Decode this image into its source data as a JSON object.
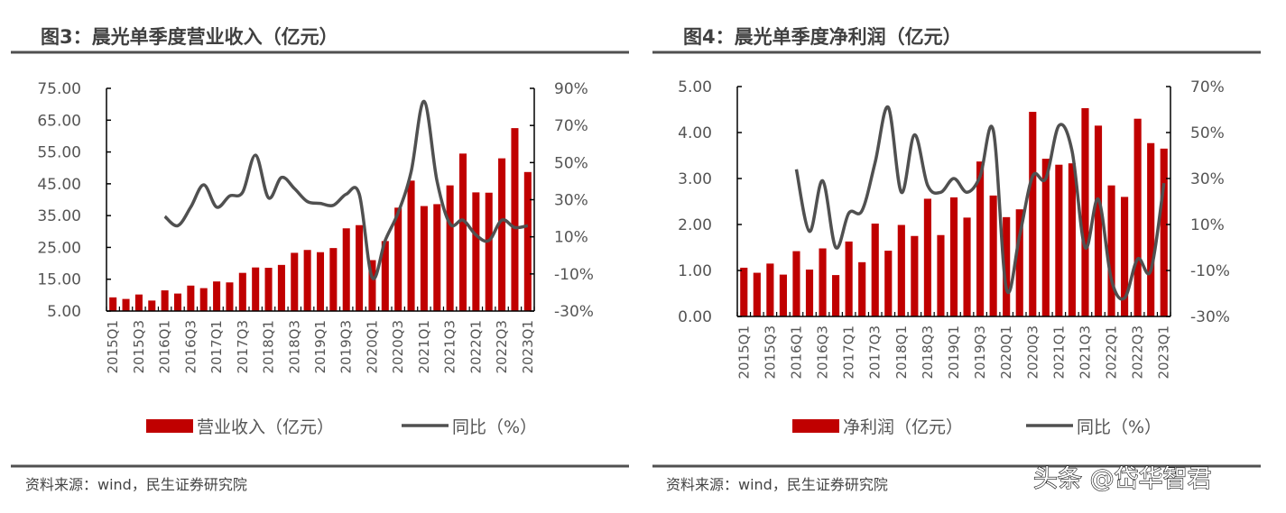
{
  "colors": {
    "bar": "#c00000",
    "line": "#505050",
    "axis": "#000000",
    "rule": "#505050"
  },
  "watermark": "头条 @岱华智君",
  "chart_data": [
    {
      "type": "bar+line",
      "title": "图3：晨光单季度营业收入（亿元）",
      "source": "资料来源：wind，民生证券研究院",
      "categories": [
        "2015Q1",
        "2015Q2",
        "2015Q3",
        "2015Q4",
        "2016Q1",
        "2016Q2",
        "2016Q3",
        "2016Q4",
        "2017Q1",
        "2017Q2",
        "2017Q3",
        "2017Q4",
        "2018Q1",
        "2018Q2",
        "2018Q3",
        "2018Q4",
        "2019Q1",
        "2019Q2",
        "2019Q3",
        "2019Q4",
        "2020Q1",
        "2020Q2",
        "2020Q3",
        "2020Q4",
        "2021Q1",
        "2021Q2",
        "2021Q3",
        "2021Q4",
        "2022Q1",
        "2022Q2",
        "2022Q3",
        "2022Q4",
        "2023Q1"
      ],
      "x_tick_labels": [
        "2015Q1",
        "2015Q3",
        "2016Q1",
        "2016Q3",
        "2017Q1",
        "2017Q3",
        "2018Q1",
        "2018Q3",
        "2019Q1",
        "2019Q3",
        "2020Q1",
        "2020Q3",
        "2021Q1",
        "2021Q3",
        "2022Q1",
        "2022Q3",
        "2023Q1"
      ],
      "left_axis": {
        "ylim": [
          5,
          75
        ],
        "ticks": [
          "5.00",
          "15.00",
          "25.00",
          "35.00",
          "45.00",
          "55.00",
          "65.00",
          "75.00"
        ]
      },
      "right_axis": {
        "ylim": [
          -30,
          90
        ],
        "ticks": [
          "-30%",
          "-10%",
          "10%",
          "30%",
          "50%",
          "70%",
          "90%"
        ]
      },
      "series": [
        {
          "name": "营业收入（亿元）",
          "type": "bar",
          "axis": "left",
          "values": [
            9.3,
            8.8,
            10.2,
            8.3,
            11.5,
            10.5,
            13.0,
            12.2,
            14.3,
            14.0,
            17.0,
            18.7,
            18.6,
            19.5,
            23.3,
            24.2,
            23.5,
            24.8,
            31.0,
            32.0,
            21.0,
            27.0,
            37.5,
            46.0,
            38.0,
            38.6,
            44.5,
            54.5,
            42.3,
            42.2,
            53.0,
            62.5,
            48.7
          ]
        },
        {
          "name": "同比（%）",
          "type": "line",
          "axis": "right",
          "values": [
            null,
            null,
            null,
            null,
            21,
            16,
            26,
            38,
            26,
            32,
            34,
            54,
            31,
            42,
            36,
            29,
            28,
            27,
            33,
            33,
            -12,
            8,
            23,
            45,
            83,
            40,
            17,
            19,
            11,
            8,
            19,
            15,
            16
          ]
        }
      ],
      "legend": "bottom"
    },
    {
      "type": "bar+line",
      "title": "图4：晨光单季度净利润（亿元）",
      "source": "资料来源：wind，民生证券研究院",
      "categories": [
        "2015Q1",
        "2015Q2",
        "2015Q3",
        "2015Q4",
        "2016Q1",
        "2016Q2",
        "2016Q3",
        "2016Q4",
        "2017Q1",
        "2017Q2",
        "2017Q3",
        "2017Q4",
        "2018Q1",
        "2018Q2",
        "2018Q3",
        "2018Q4",
        "2019Q1",
        "2019Q2",
        "2019Q3",
        "2019Q4",
        "2020Q1",
        "2020Q2",
        "2020Q3",
        "2020Q4",
        "2021Q1",
        "2021Q2",
        "2021Q3",
        "2021Q4",
        "2022Q1",
        "2022Q2",
        "2022Q3",
        "2022Q4",
        "2023Q1"
      ],
      "x_tick_labels": [
        "2015Q1",
        "2015Q3",
        "2016Q1",
        "2016Q3",
        "2017Q1",
        "2017Q3",
        "2018Q1",
        "2018Q3",
        "2019Q1",
        "2019Q3",
        "2020Q1",
        "2020Q3",
        "2021Q1",
        "2021Q3",
        "2022Q1",
        "2022Q3",
        "2023Q1"
      ],
      "left_axis": {
        "ylim": [
          0,
          5
        ],
        "ticks": [
          "0.00",
          "1.00",
          "2.00",
          "3.00",
          "4.00",
          "5.00"
        ]
      },
      "right_axis": {
        "ylim": [
          -30,
          70
        ],
        "ticks": [
          "-30%",
          "-10%",
          "10%",
          "30%",
          "50%",
          "70%"
        ]
      },
      "series": [
        {
          "name": "净利润（亿元）",
          "type": "bar",
          "axis": "left",
          "values": [
            1.06,
            0.95,
            1.15,
            0.91,
            1.42,
            1.02,
            1.48,
            0.9,
            1.63,
            1.18,
            2.02,
            1.43,
            1.99,
            1.75,
            2.56,
            1.77,
            2.59,
            2.15,
            3.37,
            2.63,
            2.16,
            2.33,
            4.45,
            3.43,
            3.3,
            3.33,
            4.53,
            4.15,
            2.85,
            2.6,
            4.3,
            3.77,
            3.65
          ]
        },
        {
          "name": "同比（%）",
          "type": "line",
          "axis": "right",
          "values": [
            null,
            null,
            null,
            null,
            34,
            7,
            29,
            0,
            15,
            16,
            37,
            61,
            24,
            49,
            27,
            24,
            30,
            24,
            31,
            51,
            -18,
            5,
            31,
            30,
            53,
            42,
            0,
            21,
            -14,
            -22,
            -5,
            -10,
            28
          ]
        }
      ],
      "legend": "bottom"
    }
  ]
}
